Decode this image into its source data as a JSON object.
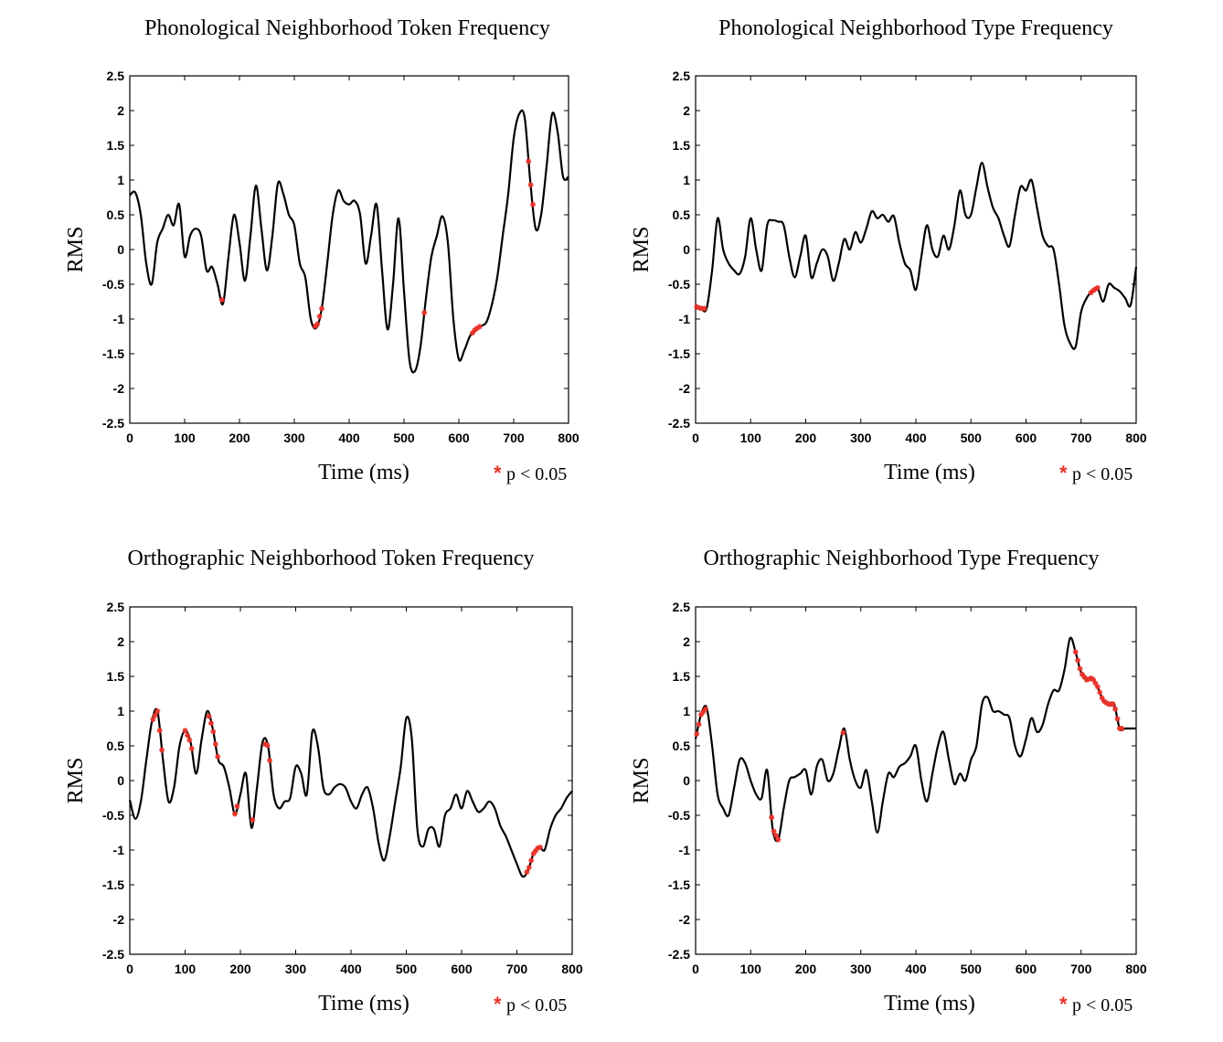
{
  "chart_data": [
    {
      "type": "line",
      "title": "Phonological Neighborhood Token Frequency",
      "xlabel": "Time (ms)",
      "ylabel": "RMS",
      "xlim": [
        0,
        800
      ],
      "ylim": [
        -2.5,
        2.5
      ],
      "xticks": [
        "0",
        "100",
        "200",
        "300",
        "400",
        "500",
        "600",
        "700",
        "800"
      ],
      "yticks": [
        "2.5",
        "2",
        "1.5",
        "1",
        "0.5",
        "0",
        "-0.5",
        "-1",
        "-1.5",
        "-2",
        "-2.5"
      ],
      "grid": false,
      "legend": {
        "marker": "*",
        "label": "p < 0.05",
        "position": "below-right"
      },
      "series": [
        {
          "x": [
            0,
            10,
            20,
            30,
            40,
            50,
            60,
            70,
            80,
            90,
            100,
            110,
            120,
            130,
            140,
            150,
            160,
            170,
            180,
            190,
            200,
            210,
            220,
            230,
            240,
            250,
            260,
            270,
            280,
            290,
            300,
            310,
            320,
            330,
            340,
            350,
            360,
            370,
            380,
            390,
            400,
            410,
            420,
            430,
            440,
            450,
            460,
            470,
            480,
            490,
            500,
            510,
            520,
            530,
            540,
            550,
            560,
            570,
            580,
            590,
            600,
            610,
            620,
            630,
            640,
            650,
            660,
            670,
            680,
            690,
            700,
            710,
            720,
            730,
            740,
            750,
            760,
            770,
            780,
            790,
            800
          ],
          "y": [
            0.78,
            0.82,
            0.5,
            -0.2,
            -0.5,
            0.1,
            0.3,
            0.5,
            0.35,
            0.65,
            -0.1,
            0.2,
            0.3,
            0.2,
            -0.3,
            -0.25,
            -0.5,
            -0.78,
            -0.1,
            0.5,
            0.1,
            -0.45,
            0.2,
            0.92,
            0.3,
            -0.3,
            0.2,
            0.95,
            0.8,
            0.5,
            0.35,
            -0.2,
            -0.4,
            -1.0,
            -1.13,
            -0.85,
            -0.2,
            0.5,
            0.85,
            0.7,
            0.65,
            0.7,
            0.5,
            -0.2,
            0.2,
            0.65,
            -0.3,
            -1.15,
            -0.5,
            0.45,
            -0.6,
            -1.6,
            -1.75,
            -1.4,
            -0.7,
            -0.1,
            0.2,
            0.48,
            0.1,
            -1.0,
            -1.58,
            -1.45,
            -1.25,
            -1.15,
            -1.1,
            -1.05,
            -0.8,
            -0.4,
            0.2,
            0.8,
            1.6,
            1.95,
            1.9,
            1.0,
            0.3,
            0.5,
            1.2,
            1.95,
            1.7,
            1.05,
            1.05
          ]
        }
      ],
      "significant_x": [
        168,
        338,
        342,
        346,
        350,
        537,
        625,
        629,
        633,
        638,
        727,
        731,
        735
      ]
    },
    {
      "type": "line",
      "title": "Phonological Neighborhood Type Frequency",
      "xlabel": "Time (ms)",
      "ylabel": "RMS",
      "xlim": [
        0,
        800
      ],
      "ylim": [
        -2.5,
        2.5
      ],
      "xticks": [
        "0",
        "100",
        "200",
        "300",
        "400",
        "500",
        "600",
        "700",
        "800"
      ],
      "yticks": [
        "2.5",
        "2",
        "1.5",
        "1",
        "0.5",
        "0",
        "-0.5",
        "-1",
        "-1.5",
        "-2",
        "-2.5"
      ],
      "grid": false,
      "legend": {
        "marker": "*",
        "label": "p < 0.05",
        "position": "below-right"
      },
      "series": [
        {
          "x": [
            0,
            10,
            20,
            30,
            40,
            50,
            60,
            70,
            80,
            90,
            100,
            110,
            120,
            130,
            140,
            150,
            160,
            170,
            180,
            190,
            200,
            210,
            220,
            230,
            240,
            250,
            260,
            270,
            280,
            290,
            300,
            310,
            320,
            330,
            340,
            350,
            360,
            370,
            380,
            390,
            400,
            410,
            420,
            430,
            440,
            450,
            460,
            470,
            480,
            490,
            500,
            510,
            520,
            530,
            540,
            550,
            560,
            570,
            580,
            590,
            600,
            610,
            620,
            630,
            640,
            650,
            660,
            670,
            680,
            690,
            700,
            710,
            720,
            730,
            740,
            750,
            760,
            770,
            780,
            790,
            800
          ],
          "y": [
            -0.82,
            -0.85,
            -0.85,
            -0.3,
            0.45,
            0.0,
            -0.2,
            -0.3,
            -0.35,
            -0.1,
            0.45,
            0.0,
            -0.3,
            0.35,
            0.42,
            0.4,
            0.35,
            -0.1,
            -0.4,
            -0.1,
            0.2,
            -0.4,
            -0.2,
            0.0,
            -0.1,
            -0.45,
            -0.2,
            0.15,
            0.0,
            0.25,
            0.1,
            0.3,
            0.55,
            0.45,
            0.5,
            0.4,
            0.48,
            0.1,
            -0.2,
            -0.3,
            -0.58,
            -0.1,
            0.35,
            0.0,
            -0.1,
            0.2,
            0.0,
            0.35,
            0.85,
            0.5,
            0.5,
            0.9,
            1.25,
            0.9,
            0.6,
            0.45,
            0.2,
            0.05,
            0.5,
            0.9,
            0.85,
            1.0,
            0.6,
            0.2,
            0.05,
            0.0,
            -0.5,
            -1.1,
            -1.35,
            -1.4,
            -0.9,
            -0.7,
            -0.6,
            -0.55,
            -0.75,
            -0.5,
            -0.55,
            -0.6,
            -0.7,
            -0.8,
            -0.25
          ],
          "x_override": [
            0,
            10,
            20,
            30,
            40,
            50,
            60,
            70,
            80,
            90,
            100,
            110,
            120,
            130,
            140,
            150,
            160,
            170,
            180,
            190,
            200,
            210,
            220,
            230,
            240,
            250,
            260,
            270,
            280,
            290,
            300,
            310,
            320,
            330,
            340,
            350,
            360,
            370,
            380,
            390,
            400,
            410,
            420,
            430,
            440,
            450,
            460,
            470,
            480,
            490,
            500,
            510,
            520,
            530,
            540,
            550,
            560,
            570,
            580,
            590,
            600,
            610,
            620,
            630,
            640,
            650,
            660,
            670,
            680,
            690,
            700,
            710,
            720,
            730,
            740,
            750,
            760,
            770,
            780,
            790,
            800
          ]
        }
      ],
      "significant_x": [
        2,
        7,
        12,
        16,
        718,
        722,
        726,
        730
      ]
    },
    {
      "type": "line",
      "title": "Orthographic Neighborhood Token Frequency",
      "xlabel": "Time (ms)",
      "ylabel": "RMS",
      "xlim": [
        0,
        800
      ],
      "ylim": [
        -2.5,
        2.5
      ],
      "xticks": [
        "0",
        "100",
        "200",
        "300",
        "400",
        "500",
        "600",
        "700",
        "800"
      ],
      "yticks": [
        "2.5",
        "2",
        "1.5",
        "1",
        "0.5",
        "0",
        "-0.5",
        "-1",
        "-1.5",
        "-2",
        "-2.5"
      ],
      "grid": false,
      "legend": {
        "marker": "*",
        "label": "p < 0.05",
        "position": "below-right"
      },
      "series": [
        {
          "x": [
            0,
            10,
            20,
            30,
            40,
            50,
            60,
            70,
            80,
            90,
            100,
            110,
            120,
            130,
            140,
            150,
            160,
            170,
            180,
            190,
            200,
            210,
            220,
            230,
            240,
            250,
            260,
            270,
            280,
            290,
            300,
            310,
            320,
            330,
            340,
            350,
            360,
            370,
            380,
            390,
            400,
            410,
            420,
            430,
            440,
            450,
            460,
            470,
            480,
            490,
            500,
            510,
            520,
            530,
            540,
            550,
            560,
            570,
            580,
            590,
            600,
            610,
            620,
            630,
            640,
            650,
            660,
            670,
            680,
            690,
            700,
            710,
            720,
            730,
            740,
            750,
            760,
            770,
            780,
            790,
            800
          ],
          "y": [
            -0.28,
            -0.55,
            -0.3,
            0.3,
            0.85,
            1.0,
            0.3,
            -0.3,
            -0.1,
            0.5,
            0.72,
            0.55,
            0.1,
            0.6,
            1.0,
            0.75,
            0.3,
            0.2,
            -0.1,
            -0.48,
            -0.2,
            0.1,
            -0.68,
            -0.1,
            0.55,
            0.5,
            -0.2,
            -0.4,
            -0.3,
            -0.25,
            0.2,
            0.1,
            -0.2,
            0.7,
            0.5,
            -0.1,
            -0.2,
            -0.1,
            -0.05,
            -0.1,
            -0.3,
            -0.4,
            -0.2,
            -0.1,
            -0.4,
            -0.9,
            -1.15,
            -0.8,
            -0.3,
            0.2,
            0.9,
            0.6,
            -0.7,
            -0.95,
            -0.7,
            -0.7,
            -0.95,
            -0.5,
            -0.4,
            -0.2,
            -0.4,
            -0.15,
            -0.3,
            -0.45,
            -0.4,
            -0.3,
            -0.4,
            -0.65,
            -0.8,
            -1.0,
            -1.2,
            -1.38,
            -1.3,
            -1.05,
            -0.95,
            -1.0,
            -0.7,
            -0.5,
            -0.4,
            -0.25,
            -0.15
          ]
        }
      ],
      "significant_x": [
        42,
        46,
        50,
        54,
        58,
        100,
        104,
        108,
        112,
        143,
        147,
        151,
        155,
        159,
        190,
        194,
        222,
        245,
        249,
        253,
        718,
        722,
        726,
        730,
        734,
        738,
        742
      ]
    },
    {
      "type": "line",
      "title": "Orthographic Neighborhood Type Frequency",
      "xlabel": "Time (ms)",
      "ylabel": "RMS",
      "xlim": [
        0,
        800
      ],
      "ylim": [
        -2.5,
        2.5
      ],
      "xticks": [
        "0",
        "100",
        "200",
        "300",
        "400",
        "500",
        "600",
        "700",
        "800"
      ],
      "yticks": [
        "2.5",
        "2",
        "1.5",
        "1",
        "0.5",
        "0",
        "-0.5",
        "-1",
        "-1.5",
        "-2",
        "-2.5"
      ],
      "grid": false,
      "legend": {
        "marker": "*",
        "label": "p < 0.05",
        "position": "below-right"
      },
      "series": [
        {
          "x": [
            0,
            10,
            20,
            30,
            40,
            50,
            60,
            70,
            80,
            90,
            100,
            110,
            120,
            130,
            140,
            150,
            160,
            170,
            180,
            190,
            200,
            210,
            220,
            230,
            240,
            250,
            260,
            270,
            280,
            290,
            300,
            310,
            320,
            330,
            340,
            350,
            360,
            370,
            380,
            390,
            400,
            410,
            420,
            430,
            440,
            450,
            460,
            470,
            480,
            490,
            500,
            510,
            520,
            530,
            540,
            550,
            560,
            570,
            580,
            590,
            600,
            610,
            620,
            630,
            640,
            650,
            660,
            670,
            680,
            690,
            700,
            710,
            720,
            730,
            740,
            750,
            760,
            770,
            780,
            790,
            800
          ],
          "y": [
            0.6,
            0.95,
            1.05,
            0.5,
            -0.2,
            -0.4,
            -0.5,
            -0.1,
            0.3,
            0.25,
            0.0,
            -0.2,
            -0.25,
            0.15,
            -0.7,
            -0.85,
            -0.4,
            0.0,
            0.05,
            0.1,
            0.15,
            -0.2,
            0.2,
            0.3,
            0.0,
            0.1,
            0.45,
            0.75,
            0.3,
            0.0,
            -0.1,
            0.15,
            -0.3,
            -0.75,
            -0.3,
            0.1,
            0.05,
            0.2,
            0.25,
            0.35,
            0.5,
            0.0,
            -0.3,
            0.1,
            0.5,
            0.7,
            0.3,
            -0.05,
            0.1,
            0.0,
            0.3,
            0.5,
            1.1,
            1.2,
            1.0,
            1.0,
            0.95,
            0.9,
            0.5,
            0.35,
            0.6,
            0.9,
            0.7,
            0.8,
            1.1,
            1.3,
            1.3,
            1.6,
            2.05,
            1.85,
            1.55,
            1.45,
            1.48,
            1.35,
            1.15,
            1.1,
            1.1,
            0.75,
            0.75,
            0.75,
            0.75
          ]
        }
      ],
      "significant_x": [
        2,
        6,
        10,
        14,
        18,
        138,
        142,
        146,
        150,
        268,
        690,
        694,
        698,
        702,
        706,
        710,
        714,
        718,
        722,
        726,
        730,
        734,
        738,
        742,
        746,
        750,
        754,
        758,
        762,
        766,
        770,
        774
      ]
    }
  ]
}
